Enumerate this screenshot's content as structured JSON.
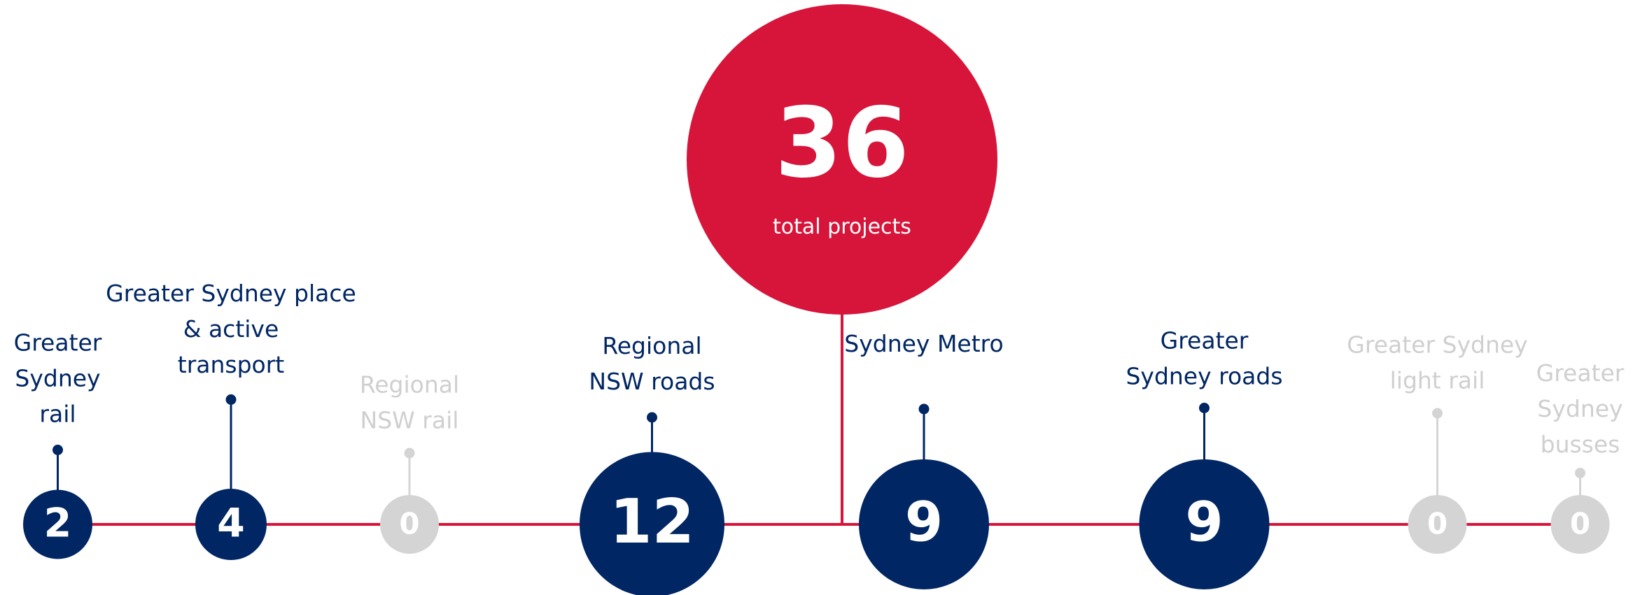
{
  "total": {
    "value": 36,
    "caption": "total projects",
    "color": "#d7153a"
  },
  "line_color": "#d7153a",
  "items": [
    {
      "label": [
        "Greater",
        "Sydney",
        "rail"
      ],
      "value": 2,
      "color": "#002664",
      "label_color": "#002664"
    },
    {
      "label": [
        "Greater Sydney place",
        "& active",
        "transport"
      ],
      "value": 4,
      "color": "#002664",
      "label_color": "#002664"
    },
    {
      "label": [
        "Regional",
        "NSW rail"
      ],
      "value": 0,
      "color": "#d4d4d4",
      "label_color": "#cfcfcf"
    },
    {
      "label": [
        "Regional",
        "NSW roads"
      ],
      "value": 12,
      "color": "#002664",
      "label_color": "#002664"
    },
    {
      "label": [
        "Sydney Metro"
      ],
      "value": 9,
      "color": "#002664",
      "label_color": "#002664"
    },
    {
      "label": [
        "Greater",
        "Sydney roads"
      ],
      "value": 9,
      "color": "#002664",
      "label_color": "#002664"
    },
    {
      "label": [
        "Greater Sydney",
        "light rail"
      ],
      "value": 0,
      "color": "#d4d4d4",
      "label_color": "#cfcfcf"
    },
    {
      "label": [
        "Greater",
        "Sydney",
        "busses"
      ],
      "value": 0,
      "color": "#d4d4d4",
      "label_color": "#cfcfcf"
    }
  ]
}
